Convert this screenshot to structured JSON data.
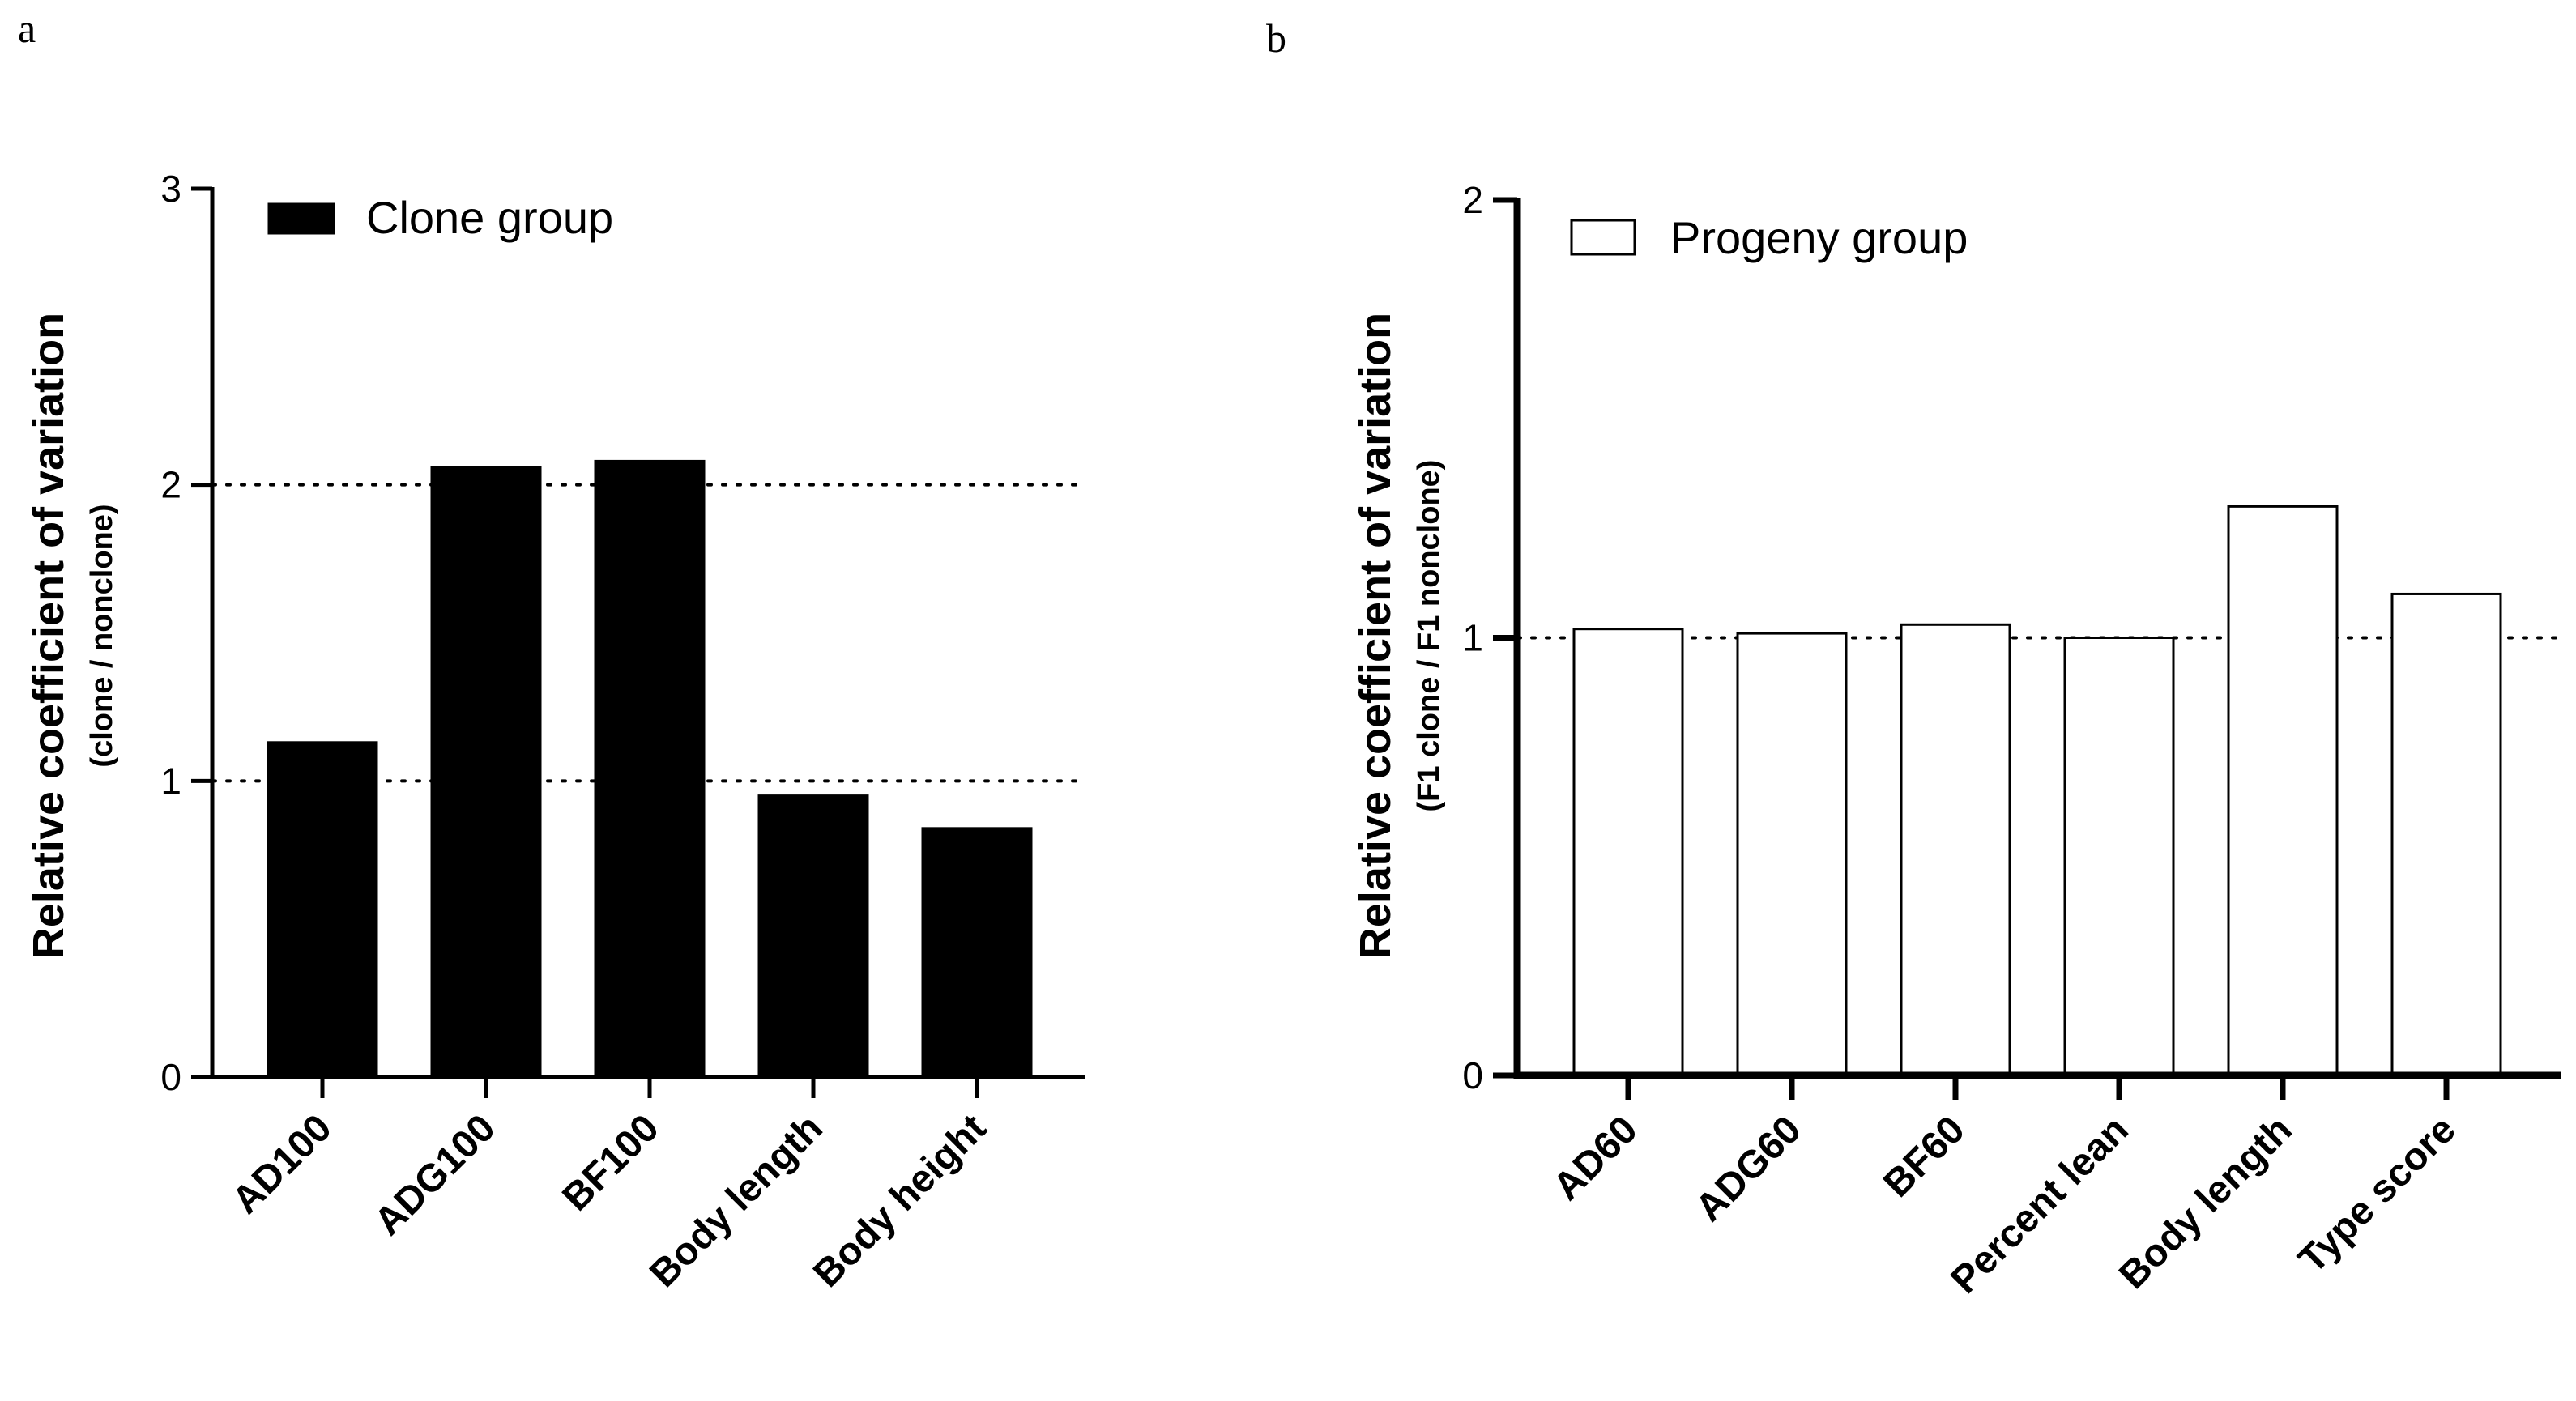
{
  "chart_data": [
    {
      "panel": "a",
      "type": "bar",
      "categories": [
        "AD100",
        "ADG100",
        "BF100",
        "Body length",
        "Body height"
      ],
      "series": [
        {
          "name": "Clone group",
          "values": [
            1.13,
            2.06,
            2.08,
            0.95,
            0.84
          ],
          "fill": "#000000",
          "stroke": "#000000"
        }
      ],
      "ylabel": "Relative coefficient of variation",
      "ylabel_sub": "(clone / nonclone)",
      "yticks": [
        "0",
        "1",
        "2",
        "3"
      ],
      "ylim": [
        0,
        3
      ],
      "reference_lines": [
        1,
        2
      ],
      "legend_position": "top-left"
    },
    {
      "panel": "b",
      "type": "bar",
      "categories": [
        "AD60",
        "ADG60",
        "BF60",
        "Percent lean",
        "Body length",
        "Type score"
      ],
      "series": [
        {
          "name": "Progeny group",
          "values": [
            1.02,
            1.01,
            1.03,
            1.0,
            1.3,
            1.1
          ],
          "fill": "#ffffff",
          "stroke": "#000000"
        }
      ],
      "ylabel": "Relative coefficient of variation",
      "ylabel_sub": "(F1 clone / F1 nonclone)",
      "yticks": [
        "0",
        "1",
        "2"
      ],
      "ylim": [
        0,
        2
      ],
      "reference_lines": [
        1
      ],
      "legend_position": "top-left"
    }
  ]
}
